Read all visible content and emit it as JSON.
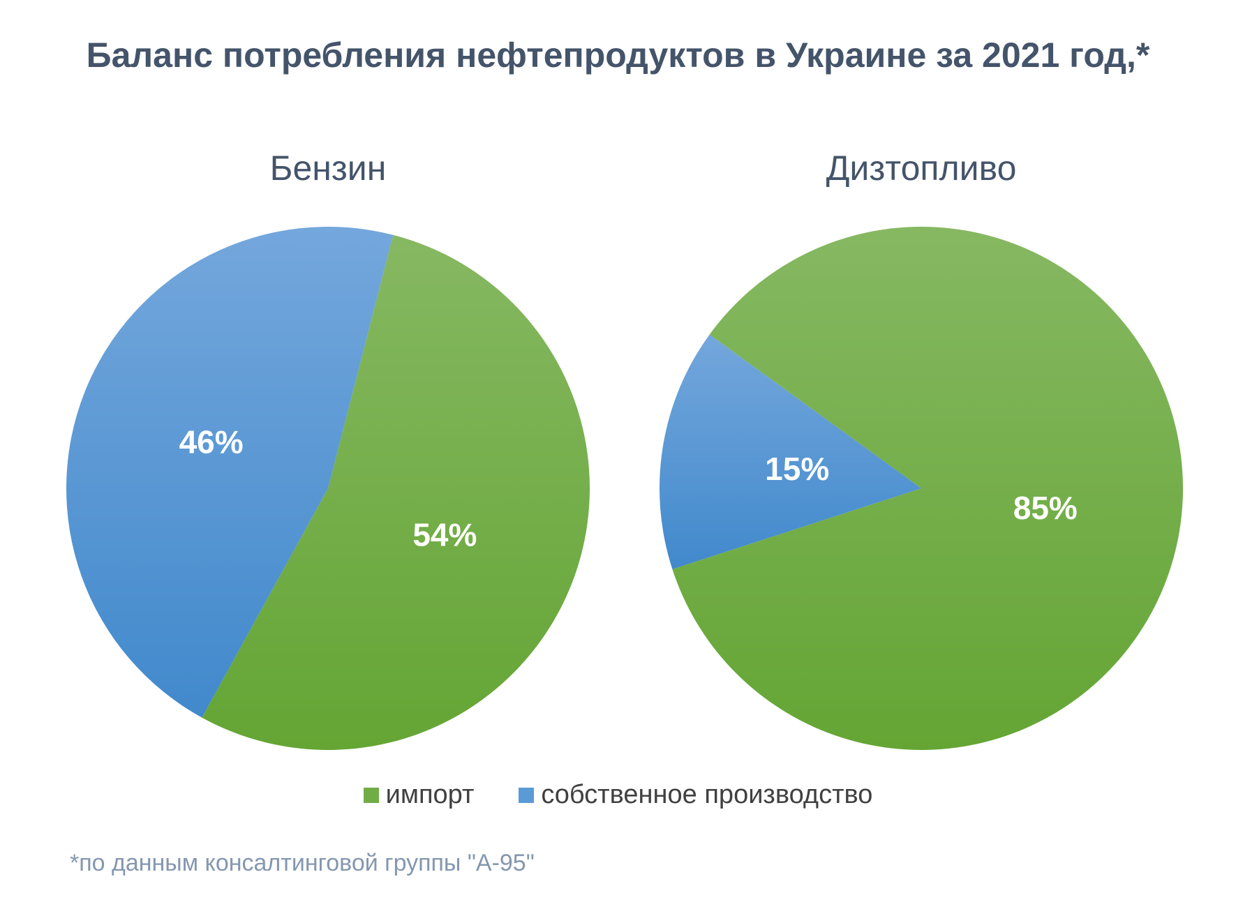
{
  "title": "Баланс потребления нефтепродуктов в Украине за 2021 год,*",
  "footnote": "*по данным консалтинговой группы \"А-95\"",
  "colors": {
    "import_top": "#86b862",
    "import_bottom": "#64a534",
    "own_top": "#74a7dc",
    "own_bottom": "#4189cc",
    "title_text": "#44546a"
  },
  "legend": {
    "position": "bottom",
    "items": [
      {
        "label": "импорт",
        "color": "#70ad47"
      },
      {
        "label": "собственное производство",
        "color": "#5b9bd5"
      }
    ]
  },
  "chart_data": [
    {
      "type": "pie",
      "title": "Бензин",
      "slices": [
        {
          "name": "импорт",
          "value": 54,
          "label": "54%",
          "color": "#70ad47"
        },
        {
          "name": "собственное производство",
          "value": 46,
          "label": "46%",
          "color": "#5b9bd5"
        }
      ]
    },
    {
      "type": "pie",
      "title": "Дизтопливо",
      "slices": [
        {
          "name": "импорт",
          "value": 85,
          "label": "85%",
          "color": "#70ad47"
        },
        {
          "name": "собственное производство",
          "value": 15,
          "label": "15%",
          "color": "#5b9bd5"
        }
      ]
    }
  ]
}
